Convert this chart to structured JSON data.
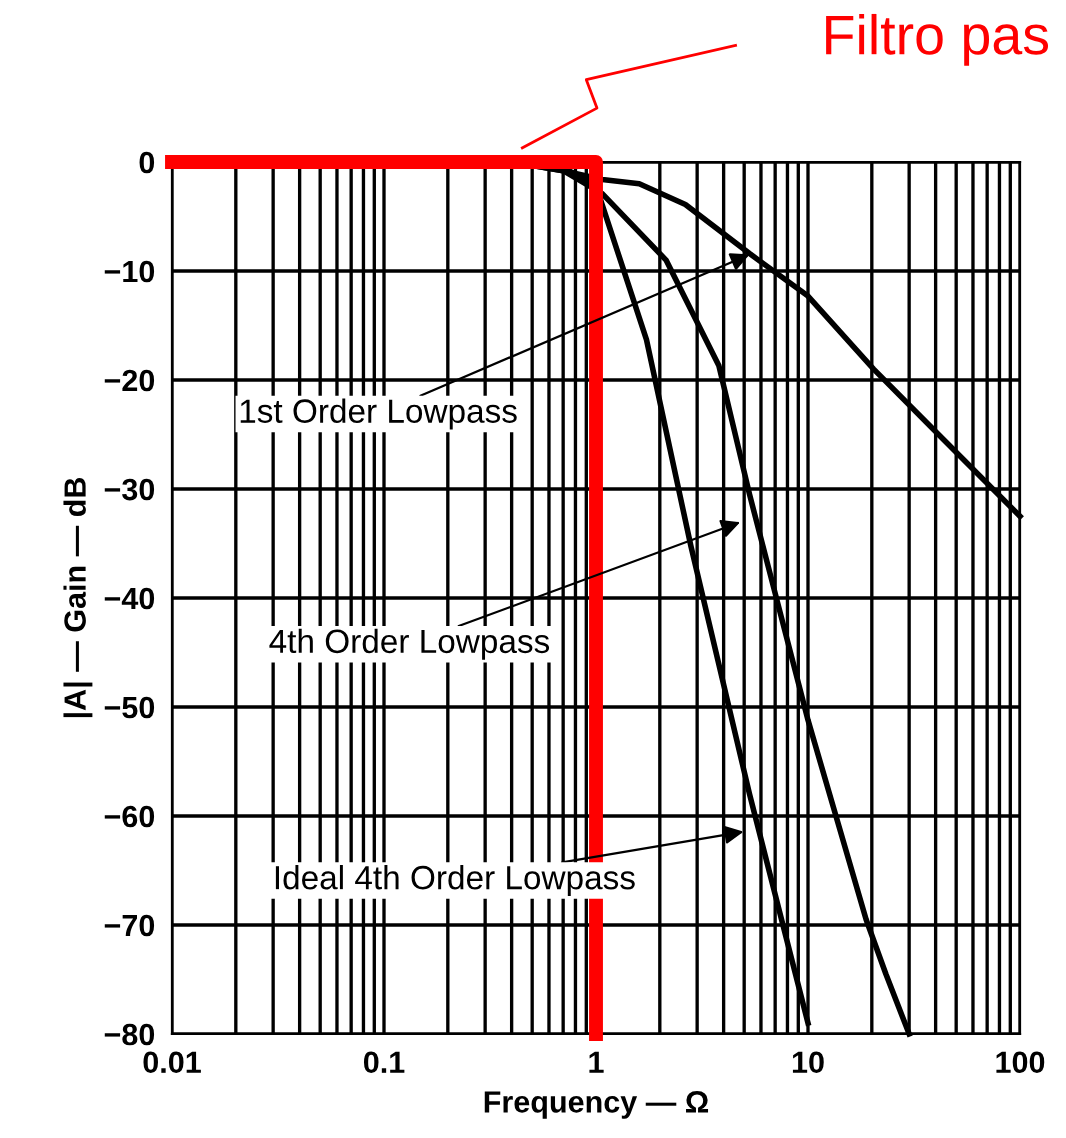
{
  "chart_data": {
    "type": "line",
    "xlabel": "Frequency — Ω",
    "ylabel": "|A| — Gain — dB",
    "log": "x",
    "xlim": [
      0.01,
      100
    ],
    "ylim": [
      -80,
      0
    ],
    "xticks": [
      0.01,
      {
        "value": 0.02,
        "label": null
      },
      {
        "value": 0.03,
        "label": null
      },
      {
        "value": 0.04,
        "label": null
      },
      {
        "value": 0.05,
        "label": null
      },
      {
        "value": 0.06,
        "label": null
      },
      {
        "value": 0.07,
        "label": null
      },
      {
        "value": 0.08,
        "label": null
      },
      {
        "value": 0.09,
        "label": null
      },
      0.1,
      {
        "value": 0.2,
        "label": null
      },
      {
        "value": 0.3,
        "label": null
      },
      {
        "value": 0.4,
        "label": null
      },
      {
        "value": 0.5,
        "label": null
      },
      {
        "value": 0.6,
        "label": null
      },
      {
        "value": 0.7,
        "label": null
      },
      {
        "value": 0.8,
        "label": null
      },
      {
        "value": 0.9,
        "label": null
      },
      1,
      {
        "value": 2,
        "label": null
      },
      {
        "value": 3,
        "label": null
      },
      {
        "value": 4,
        "label": null
      },
      {
        "value": 5,
        "label": null
      },
      {
        "value": 6,
        "label": null
      },
      {
        "value": 7,
        "label": null
      },
      {
        "value": 8,
        "label": null
      },
      {
        "value": 9,
        "label": null
      },
      10,
      {
        "value": 20,
        "label": null
      },
      {
        "value": 30,
        "label": null
      },
      {
        "value": 40,
        "label": null
      },
      {
        "value": 50,
        "label": null
      },
      {
        "value": 60,
        "label": null
      },
      {
        "value": 70,
        "label": null
      },
      {
        "value": 80,
        "label": null
      },
      {
        "value": 90,
        "label": null
      },
      100
    ],
    "yticks": [
      0,
      {
        "value": -10,
        "label": "−10"
      },
      {
        "value": -20,
        "label": "−20"
      },
      {
        "value": -30,
        "label": "−30"
      },
      {
        "value": -40,
        "label": "−40"
      },
      {
        "value": -50,
        "label": "−50"
      },
      {
        "value": -60,
        "label": "−60"
      },
      {
        "value": -70,
        "label": "−70"
      },
      {
        "value": -80,
        "label": "−80"
      }
    ],
    "grid": true,
    "legend": false,
    "marker": "none",
    "line_style": "solid",
    "series": [
      {
        "color": "#000000",
        "x": [
          0.4,
          0.7,
          1.07,
          1.6,
          2.64,
          5.3,
          10,
          20.4,
          43.8,
          100
        ],
        "values": [
          0,
          -0.8,
          -1.6,
          -2,
          -3.9,
          -8.4,
          -12.3,
          -19,
          -25.5,
          -32.5
        ]
      },
      {
        "color": "#000000",
        "x": [
          0.4,
          0.7,
          1.07,
          2.14,
          3.8,
          5.3,
          10,
          18.8,
          23.3,
          30
        ],
        "values": [
          0,
          -0.8,
          -2.9,
          -9,
          -18.7,
          -30.5,
          -51.2,
          -69.5,
          -74.5,
          -80
        ]
      },
      {
        "color": "#000000",
        "x": [
          0.4,
          0.7,
          1.0,
          1.73,
          2.8,
          5.3,
          10
        ],
        "values": [
          0,
          -0.5,
          -2.2,
          -16.3,
          -35.2,
          -58,
          -79
        ]
      },
      {
        "color": "#ff0000",
        "x": [
          0.01,
          1,
          1
        ],
        "values": [
          0,
          0,
          -80
        ]
      }
    ],
    "annotations": [
      "1st Order Lowpass",
      "4th Order Lowpass",
      "Ideal 4th Order Lowpass",
      "Filtro pas"
    ]
  }
}
